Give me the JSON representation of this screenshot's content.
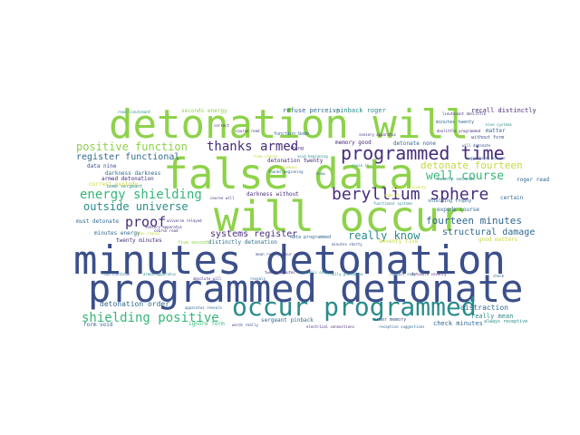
{
  "palette": {
    "navy": "#3b4f8a",
    "blue": "#31688e",
    "teal": "#2a8c8a",
    "green": "#35b779",
    "lime": "#8ed24a",
    "yellow": "#c8d93c",
    "purple": "#472d7b",
    "cyan": "#38a3a5"
  },
  "words": [
    {
      "text": "minutes detonation",
      "color": "navy"
    },
    {
      "text": "programmed detonate",
      "color": "navy"
    },
    {
      "text": "false data",
      "color": "lime"
    },
    {
      "text": "detonation will",
      "color": "lime"
    },
    {
      "text": "will occur",
      "color": "lime"
    },
    {
      "text": "occur programmed",
      "color": "teal"
    },
    {
      "text": "programmed time",
      "color": "purple"
    },
    {
      "text": "beryllium sphere",
      "color": "purple"
    },
    {
      "text": "thanks armed",
      "color": "purple"
    },
    {
      "text": "energy shielding",
      "color": "green"
    },
    {
      "text": "shielding positive",
      "color": "green"
    },
    {
      "text": "positive function",
      "color": "lime"
    },
    {
      "text": "proof",
      "color": "purple"
    },
    {
      "text": "outside universe",
      "color": "teal"
    },
    {
      "text": "well course",
      "color": "green"
    },
    {
      "text": "detonate fourteen",
      "color": "yellow"
    },
    {
      "text": "fourteen minutes",
      "color": "blue"
    },
    {
      "text": "really know",
      "color": "teal"
    },
    {
      "text": "systems register",
      "color": "purple"
    },
    {
      "text": "structural damage",
      "color": "blue"
    },
    {
      "text": "register functional",
      "color": "blue"
    },
    {
      "text": "armed detonation",
      "color": "purple"
    },
    {
      "text": "detonation order",
      "color": "blue"
    },
    {
      "text": "distraction",
      "color": "blue"
    },
    {
      "text": "really mean",
      "color": "teal"
    },
    {
      "text": "check minutes",
      "color": "blue"
    },
    {
      "text": "twenty minutes",
      "color": "purple"
    },
    {
      "text": "refuse perceive",
      "color": "blue"
    },
    {
      "text": "pinback roger",
      "color": "teal"
    },
    {
      "text": "recall distinctly",
      "color": "purple"
    },
    {
      "text": "seconds energy",
      "color": "lime"
    },
    {
      "text": "detonation twenty",
      "color": "purple"
    },
    {
      "text": "memory good",
      "color": "purple"
    },
    {
      "text": "detonate none",
      "color": "blue"
    },
    {
      "text": "darkness darkness",
      "color": "blue"
    },
    {
      "text": "bomb sergeant",
      "color": "teal"
    },
    {
      "text": "darkness without",
      "color": "purple"
    },
    {
      "text": "sergeant pinback",
      "color": "blue"
    },
    {
      "text": "order memory",
      "color": "navy"
    },
    {
      "text": "minutes energy",
      "color": "blue"
    },
    {
      "text": "must detonate",
      "color": "blue"
    },
    {
      "text": "expode course",
      "color": "blue"
    },
    {
      "text": "seventy five",
      "color": "yellow"
    },
    {
      "text": "shielding trophy",
      "color": "blue"
    },
    {
      "text": "distinctly detonation",
      "color": "blue"
    },
    {
      "text": "data nine",
      "color": "navy"
    },
    {
      "text": "correct explode",
      "color": "yellow"
    },
    {
      "text": "ignore form",
      "color": "green"
    },
    {
      "text": "form void",
      "color": "blue"
    },
    {
      "text": "matter",
      "color": "blue"
    },
    {
      "text": "without form",
      "color": "navy"
    },
    {
      "text": "data programmed",
      "color": "blue"
    },
    {
      "text": "function bomb",
      "color": "blue"
    },
    {
      "text": "roger read",
      "color": "blue"
    },
    {
      "text": "certain",
      "color": "blue"
    },
    {
      "text": "good matters",
      "color": "yellow"
    },
    {
      "text": "always receptive",
      "color": "teal"
    },
    {
      "text": "read lieutenant",
      "color": "teal"
    },
    {
      "text": "universe relayed",
      "color": "purple"
    },
    {
      "text": "lieutenant doolittle",
      "color": "purple"
    },
    {
      "text": "doolittle programmed",
      "color": "purple"
    },
    {
      "text": "minutes twenty",
      "color": "blue"
    },
    {
      "text": "nine systems",
      "color": "teal"
    },
    {
      "text": "suggestions course",
      "color": "blue"
    },
    {
      "text": "functional systems",
      "color": "teal"
    },
    {
      "text": "twenty seconds",
      "color": "teal"
    },
    {
      "text": "course read",
      "color": "purple"
    },
    {
      "text": "thing",
      "color": "purple"
    },
    {
      "text": "know",
      "color": "blue"
    },
    {
      "text": "mean really",
      "color": "navy"
    },
    {
      "text": "words really",
      "color": "navy"
    },
    {
      "text": "read continue",
      "color": "blue"
    },
    {
      "text": "apparatus reveals",
      "color": "blue"
    },
    {
      "text": "sensory apparatus",
      "color": "purple"
    },
    {
      "text": "reveals",
      "color": "blue"
    },
    {
      "text": "electrical connections",
      "color": "purple"
    },
    {
      "text": "receptive suggestions",
      "color": "blue"
    },
    {
      "text": "detonate seventy",
      "color": "purple"
    },
    {
      "text": "void beginning",
      "color": "teal"
    },
    {
      "text": "absolute will",
      "color": "purple"
    },
    {
      "text": "reveals only",
      "color": "teal"
    },
    {
      "text": "time chance",
      "color": "yellow"
    },
    {
      "text": "five seconds",
      "color": "lime"
    },
    {
      "text": "minutes shorty",
      "color": "navy"
    },
    {
      "text": "really phenomena",
      "color": "teal"
    },
    {
      "text": "course will",
      "color": "purple"
    },
    {
      "text": "occur will",
      "color": "purple"
    },
    {
      "text": "will detonate",
      "color": "navy"
    },
    {
      "text": "armed apparatus",
      "color": "teal"
    },
    {
      "text": "phenomena",
      "color": "yellow"
    },
    {
      "text": "check",
      "color": "blue"
    },
    {
      "text": "made it",
      "color": "yellow"
    },
    {
      "text": "cause it",
      "color": "teal"
    },
    {
      "text": "thanks beginning",
      "color": "blue"
    },
    {
      "text": "correct",
      "color": "purple"
    },
    {
      "text": "detonate seventy",
      "color": "yellow"
    },
    {
      "text": "reveals only",
      "color": "blue"
    },
    {
      "text": "twenty minutes",
      "color": "purple"
    },
    {
      "text": "sensory apparatus",
      "color": "purple"
    },
    {
      "text": "course read",
      "color": "purple"
    },
    {
      "text": "time chance",
      "color": "yellow"
    }
  ]
}
